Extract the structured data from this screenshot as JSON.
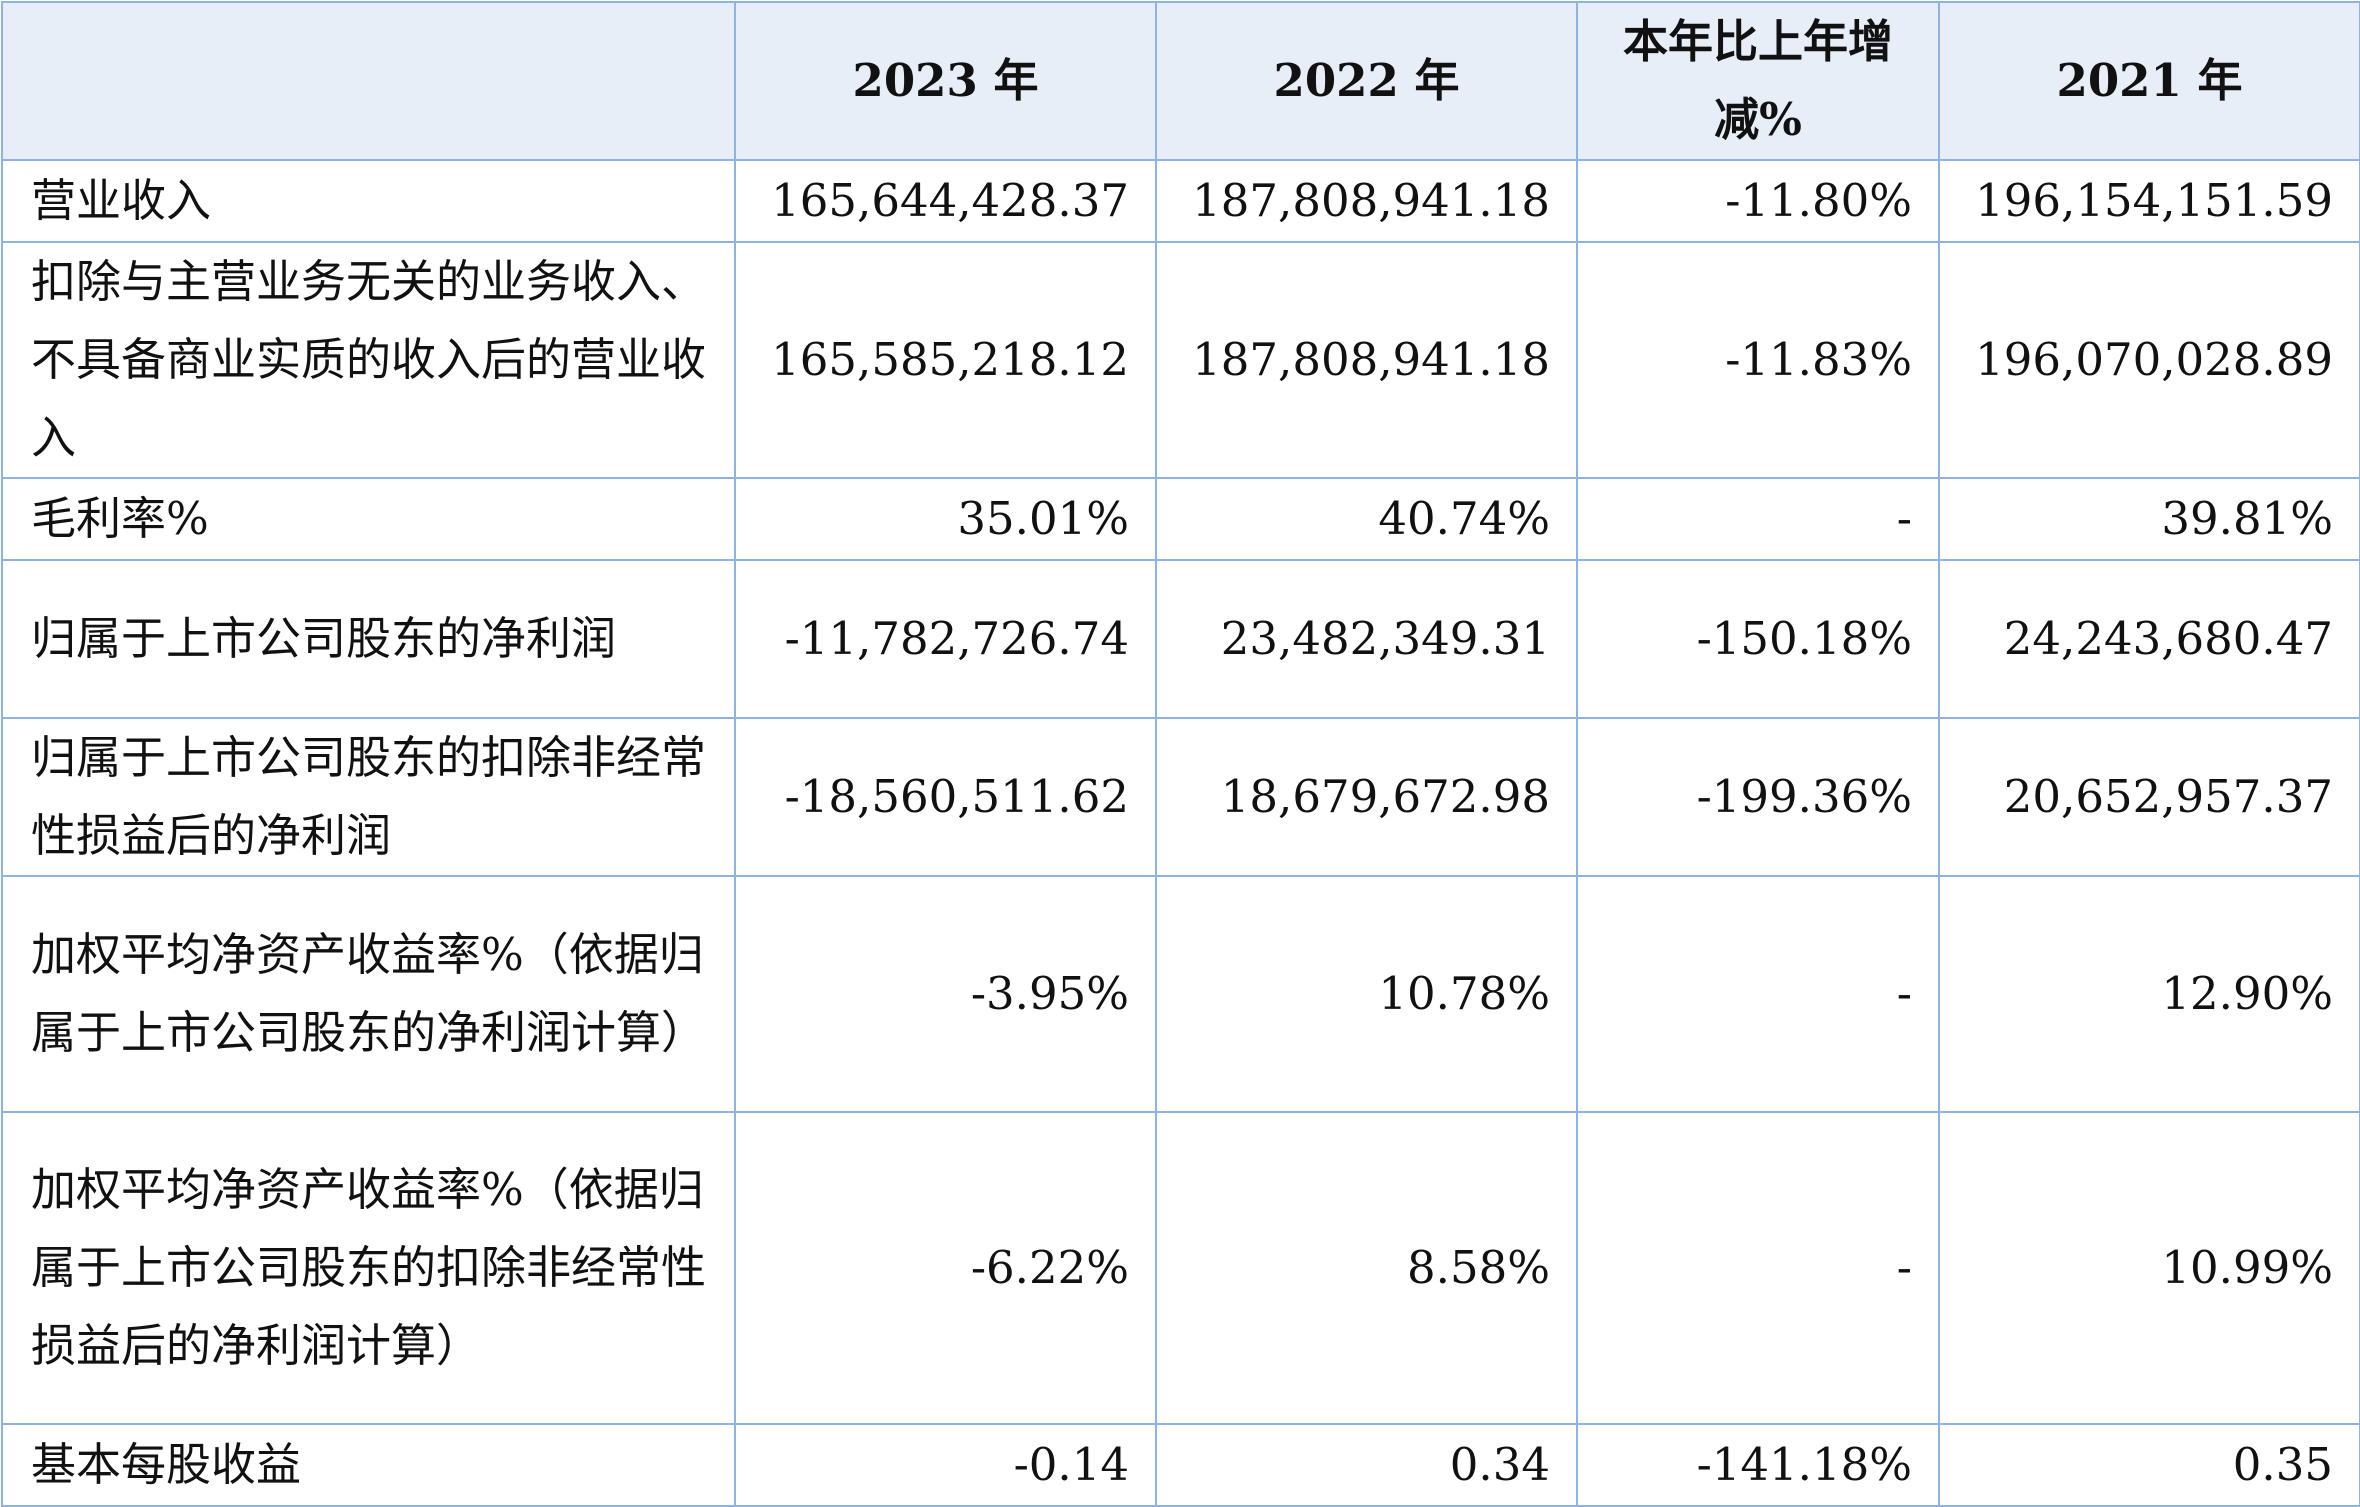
{
  "header": {
    "blank": "",
    "col_2023": "2023 年",
    "col_2022": "2022 年",
    "col_change": "本年比上年增减%",
    "col_2021": "2021 年"
  },
  "rows": [
    {
      "label": "营业收入",
      "v2023": "165,644,428.37",
      "v2022": "187,808,941.18",
      "change": "-11.80%",
      "v2021": "196,154,151.59"
    },
    {
      "label": "扣除与主营业务无关的业务收入、不具备商业实质的收入后的营业收入",
      "v2023": "165,585,218.12",
      "v2022": "187,808,941.18",
      "change": "-11.83%",
      "v2021": "196,070,028.89"
    },
    {
      "label": "毛利率%",
      "v2023": "35.01%",
      "v2022": "40.74%",
      "change": "-",
      "v2021": "39.81%"
    },
    {
      "label": "归属于上市公司股东的净利润",
      "v2023": "-11,782,726.74",
      "v2022": "23,482,349.31",
      "change": "-150.18%",
      "v2021": "24,243,680.47"
    },
    {
      "label": "归属于上市公司股东的扣除非经常性损益后的净利润",
      "v2023": "-18,560,511.62",
      "v2022": "18,679,672.98",
      "change": "-199.36%",
      "v2021": "20,652,957.37"
    },
    {
      "label": "加权平均净资产收益率%（依据归属于上市公司股东的净利润计算）",
      "v2023": "-3.95%",
      "v2022": "10.78%",
      "change": "-",
      "v2021": "12.90%"
    },
    {
      "label": "加权平均净资产收益率%（依据归属于上市公司股东的扣除非经常性损益后的净利润计算）",
      "v2023": "-6.22%",
      "v2022": "8.58%",
      "change": "-",
      "v2021": "10.99%"
    },
    {
      "label": "基本每股收益",
      "v2023": "-0.14",
      "v2022": "0.34",
      "change": "-141.18%",
      "v2021": "0.35"
    }
  ]
}
